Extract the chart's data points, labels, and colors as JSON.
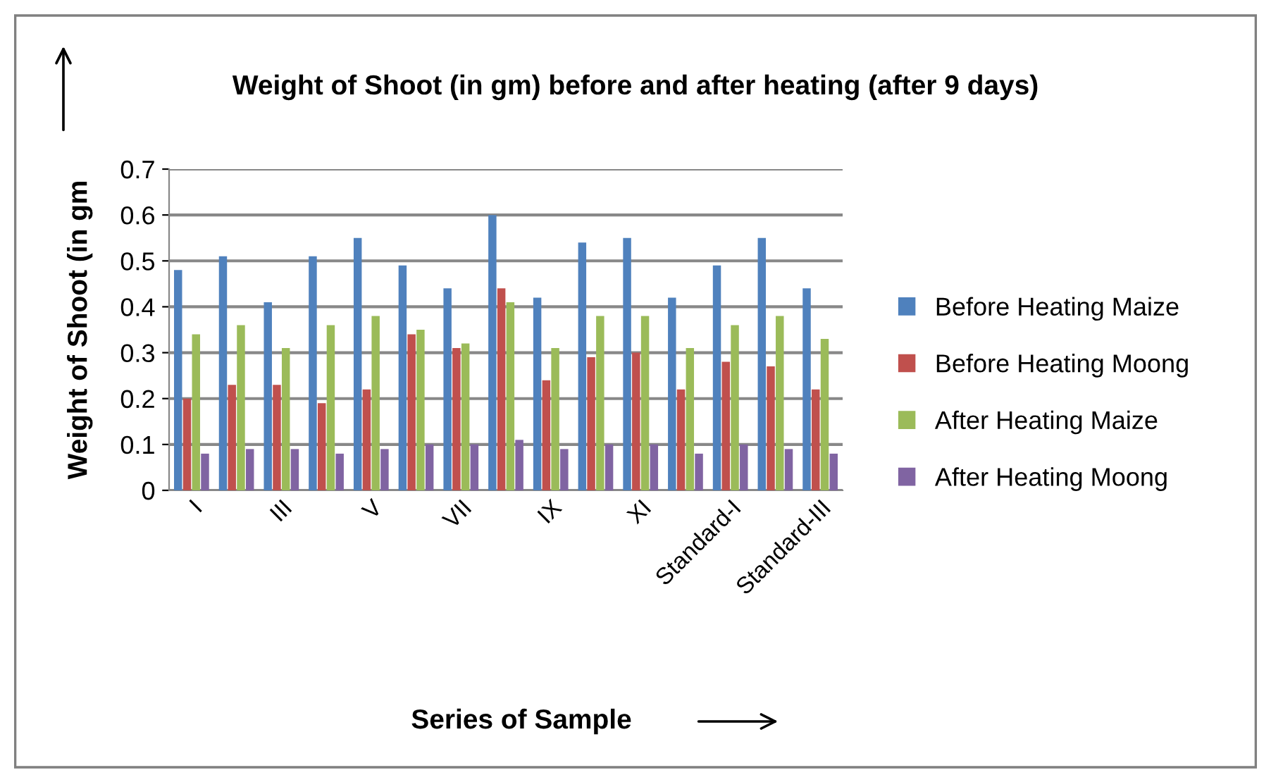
{
  "chart_data": {
    "type": "bar",
    "title": "Weight of Shoot (in gm) before and after heating (after 9 days)",
    "xlabel": "Series of Sample",
    "ylabel": "Weight of Shoot (in gm",
    "categories": [
      "I",
      null,
      "III",
      null,
      "V",
      null,
      "VII",
      null,
      "IX",
      null,
      "XI",
      null,
      "Standard-I",
      null,
      "Standard-III"
    ],
    "series": [
      {
        "name": "Before Heating Maize",
        "color": "#4f81bd",
        "values": [
          0.48,
          0.51,
          0.41,
          0.51,
          0.55,
          0.49,
          0.44,
          0.6,
          0.42,
          0.54,
          0.55,
          0.42,
          0.49,
          0.55,
          0.44
        ]
      },
      {
        "name": "Before Heating Moong",
        "color": "#c0504d",
        "values": [
          0.2,
          0.23,
          0.23,
          0.19,
          0.22,
          0.34,
          0.31,
          0.44,
          0.24,
          0.29,
          0.3,
          0.22,
          0.28,
          0.27,
          0.22
        ]
      },
      {
        "name": "After Heating Maize",
        "color": "#9bbb59",
        "values": [
          0.34,
          0.36,
          0.31,
          0.36,
          0.38,
          0.35,
          0.32,
          0.41,
          0.31,
          0.38,
          0.38,
          0.31,
          0.36,
          0.38,
          0.33
        ]
      },
      {
        "name": "After Heating Moong",
        "color": "#8064a2",
        "values": [
          0.08,
          0.09,
          0.09,
          0.08,
          0.09,
          0.1,
          0.1,
          0.11,
          0.09,
          0.1,
          0.1,
          0.08,
          0.1,
          0.09,
          0.08
        ]
      }
    ],
    "ylim": [
      0,
      0.7
    ],
    "yticks": [
      {
        "value": 0,
        "label": "0"
      },
      0.1,
      0.2,
      0.3,
      0.4,
      0.5,
      0.6,
      0.7
    ],
    "grid": "y",
    "legend": "right"
  }
}
